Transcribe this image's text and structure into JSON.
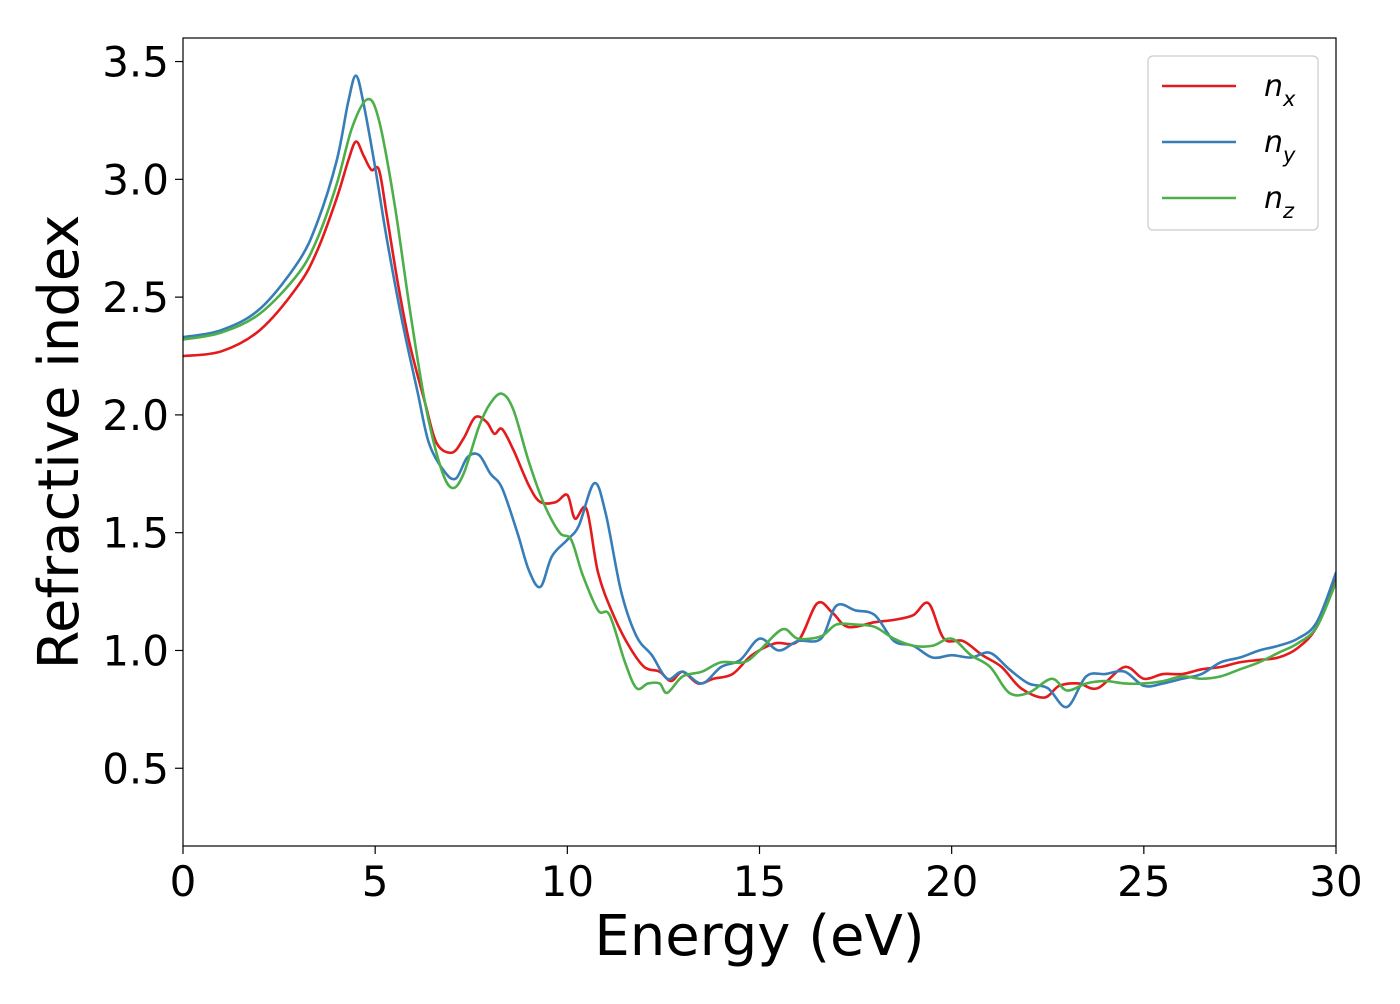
{
  "chart_data": {
    "type": "line",
    "title": "",
    "xlabel": "Energy (eV)",
    "ylabel": "Refractive index",
    "xlim": [
      0,
      30
    ],
    "ylim": [
      0.17,
      3.6
    ],
    "xticks": [
      0,
      5,
      10,
      15,
      20,
      25,
      30
    ],
    "yticks": [
      0.5,
      1.0,
      1.5,
      2.0,
      2.5,
      3.0,
      3.5
    ],
    "grid": false,
    "legend_position": "top-right",
    "series": [
      {
        "name": "n",
        "subscript": "x",
        "color": "#e41a1c",
        "points": [
          [
            0,
            2.25
          ],
          [
            1,
            2.27
          ],
          [
            2,
            2.36
          ],
          [
            3,
            2.55
          ],
          [
            3.5,
            2.7
          ],
          [
            4,
            2.92
          ],
          [
            4.3,
            3.08
          ],
          [
            4.5,
            3.16
          ],
          [
            4.7,
            3.1
          ],
          [
            4.9,
            3.04
          ],
          [
            5.1,
            3.04
          ],
          [
            5.3,
            2.85
          ],
          [
            5.6,
            2.55
          ],
          [
            5.9,
            2.3
          ],
          [
            6.3,
            2.05
          ],
          [
            6.6,
            1.88
          ],
          [
            7.0,
            1.84
          ],
          [
            7.3,
            1.9
          ],
          [
            7.6,
            1.99
          ],
          [
            7.9,
            1.97
          ],
          [
            8.1,
            1.92
          ],
          [
            8.3,
            1.94
          ],
          [
            8.6,
            1.85
          ],
          [
            9.0,
            1.7
          ],
          [
            9.3,
            1.63
          ],
          [
            9.7,
            1.63
          ],
          [
            10.0,
            1.66
          ],
          [
            10.2,
            1.56
          ],
          [
            10.5,
            1.6
          ],
          [
            10.8,
            1.33
          ],
          [
            11.2,
            1.15
          ],
          [
            11.6,
            1.02
          ],
          [
            12.0,
            0.93
          ],
          [
            12.4,
            0.91
          ],
          [
            12.7,
            0.87
          ],
          [
            13.0,
            0.91
          ],
          [
            13.4,
            0.86
          ],
          [
            13.8,
            0.88
          ],
          [
            14.3,
            0.9
          ],
          [
            14.8,
            0.98
          ],
          [
            15.4,
            1.03
          ],
          [
            16.0,
            1.04
          ],
          [
            16.5,
            1.2
          ],
          [
            16.9,
            1.16
          ],
          [
            17.3,
            1.1
          ],
          [
            18.0,
            1.12
          ],
          [
            18.5,
            1.13
          ],
          [
            19.0,
            1.15
          ],
          [
            19.4,
            1.2
          ],
          [
            19.8,
            1.05
          ],
          [
            20.3,
            1.04
          ],
          [
            20.8,
            0.98
          ],
          [
            21.3,
            0.93
          ],
          [
            21.8,
            0.84
          ],
          [
            22.4,
            0.8
          ],
          [
            22.8,
            0.85
          ],
          [
            23.3,
            0.86
          ],
          [
            23.8,
            0.84
          ],
          [
            24.5,
            0.93
          ],
          [
            25.0,
            0.88
          ],
          [
            25.5,
            0.9
          ],
          [
            26.0,
            0.9
          ],
          [
            26.5,
            0.92
          ],
          [
            27.0,
            0.93
          ],
          [
            27.5,
            0.95
          ],
          [
            28.0,
            0.96
          ],
          [
            28.5,
            0.97
          ],
          [
            29.0,
            1.01
          ],
          [
            29.5,
            1.1
          ],
          [
            30,
            1.3
          ]
        ]
      },
      {
        "name": "n",
        "subscript": "y",
        "color": "#377eb8",
        "points": [
          [
            0,
            2.33
          ],
          [
            1,
            2.36
          ],
          [
            2,
            2.45
          ],
          [
            3,
            2.65
          ],
          [
            3.5,
            2.82
          ],
          [
            4,
            3.08
          ],
          [
            4.3,
            3.33
          ],
          [
            4.5,
            3.44
          ],
          [
            4.7,
            3.32
          ],
          [
            5.0,
            3.05
          ],
          [
            5.3,
            2.75
          ],
          [
            5.7,
            2.4
          ],
          [
            6.1,
            2.1
          ],
          [
            6.4,
            1.88
          ],
          [
            6.8,
            1.76
          ],
          [
            7.1,
            1.73
          ],
          [
            7.4,
            1.82
          ],
          [
            7.7,
            1.83
          ],
          [
            8.0,
            1.75
          ],
          [
            8.3,
            1.69
          ],
          [
            8.7,
            1.5
          ],
          [
            9.0,
            1.34
          ],
          [
            9.3,
            1.27
          ],
          [
            9.6,
            1.4
          ],
          [
            10.0,
            1.47
          ],
          [
            10.3,
            1.53
          ],
          [
            10.7,
            1.71
          ],
          [
            11.0,
            1.58
          ],
          [
            11.4,
            1.25
          ],
          [
            11.8,
            1.06
          ],
          [
            12.2,
            0.98
          ],
          [
            12.6,
            0.88
          ],
          [
            13.0,
            0.91
          ],
          [
            13.5,
            0.86
          ],
          [
            14.0,
            0.93
          ],
          [
            14.5,
            0.96
          ],
          [
            15.0,
            1.05
          ],
          [
            15.5,
            1.0
          ],
          [
            16.0,
            1.04
          ],
          [
            16.6,
            1.05
          ],
          [
            17.0,
            1.19
          ],
          [
            17.5,
            1.17
          ],
          [
            18.0,
            1.15
          ],
          [
            18.5,
            1.04
          ],
          [
            19.0,
            1.02
          ],
          [
            19.5,
            0.97
          ],
          [
            20.0,
            0.98
          ],
          [
            20.5,
            0.97
          ],
          [
            21.0,
            0.99
          ],
          [
            21.5,
            0.92
          ],
          [
            22.0,
            0.86
          ],
          [
            22.5,
            0.84
          ],
          [
            23.0,
            0.76
          ],
          [
            23.5,
            0.89
          ],
          [
            24.0,
            0.9
          ],
          [
            24.5,
            0.91
          ],
          [
            25.0,
            0.85
          ],
          [
            25.5,
            0.86
          ],
          [
            26.0,
            0.88
          ],
          [
            26.5,
            0.9
          ],
          [
            27.0,
            0.95
          ],
          [
            27.5,
            0.97
          ],
          [
            28.0,
            1.0
          ],
          [
            28.5,
            1.02
          ],
          [
            29.0,
            1.05
          ],
          [
            29.5,
            1.12
          ],
          [
            30,
            1.33
          ]
        ]
      },
      {
        "name": "n",
        "subscript": "z",
        "color": "#4daf4a",
        "points": [
          [
            0,
            2.32
          ],
          [
            1,
            2.35
          ],
          [
            2,
            2.43
          ],
          [
            3,
            2.6
          ],
          [
            3.5,
            2.75
          ],
          [
            4,
            2.98
          ],
          [
            4.4,
            3.22
          ],
          [
            4.8,
            3.34
          ],
          [
            5.1,
            3.25
          ],
          [
            5.5,
            2.9
          ],
          [
            5.9,
            2.45
          ],
          [
            6.3,
            2.05
          ],
          [
            6.7,
            1.78
          ],
          [
            7.0,
            1.69
          ],
          [
            7.3,
            1.75
          ],
          [
            7.7,
            1.95
          ],
          [
            8.0,
            2.05
          ],
          [
            8.3,
            2.09
          ],
          [
            8.6,
            2.02
          ],
          [
            9.0,
            1.8
          ],
          [
            9.4,
            1.62
          ],
          [
            9.8,
            1.5
          ],
          [
            10.1,
            1.47
          ],
          [
            10.4,
            1.32
          ],
          [
            10.8,
            1.17
          ],
          [
            11.1,
            1.15
          ],
          [
            11.5,
            0.95
          ],
          [
            11.8,
            0.84
          ],
          [
            12.1,
            0.86
          ],
          [
            12.4,
            0.86
          ],
          [
            12.6,
            0.82
          ],
          [
            13.0,
            0.89
          ],
          [
            13.5,
            0.91
          ],
          [
            14.0,
            0.95
          ],
          [
            14.6,
            0.95
          ],
          [
            15.0,
            1.0
          ],
          [
            15.6,
            1.09
          ],
          [
            16.0,
            1.05
          ],
          [
            16.6,
            1.06
          ],
          [
            17.0,
            1.11
          ],
          [
            17.5,
            1.11
          ],
          [
            18.0,
            1.1
          ],
          [
            18.5,
            1.05
          ],
          [
            19.0,
            1.02
          ],
          [
            19.5,
            1.02
          ],
          [
            20.0,
            1.05
          ],
          [
            20.5,
            0.98
          ],
          [
            21.0,
            0.93
          ],
          [
            21.5,
            0.82
          ],
          [
            22.0,
            0.82
          ],
          [
            22.6,
            0.88
          ],
          [
            23.0,
            0.83
          ],
          [
            23.5,
            0.86
          ],
          [
            24.0,
            0.87
          ],
          [
            24.5,
            0.86
          ],
          [
            25.0,
            0.86
          ],
          [
            25.5,
            0.87
          ],
          [
            26.0,
            0.89
          ],
          [
            26.5,
            0.88
          ],
          [
            27.0,
            0.89
          ],
          [
            27.5,
            0.92
          ],
          [
            28.0,
            0.95
          ],
          [
            28.5,
            0.99
          ],
          [
            29.0,
            1.03
          ],
          [
            29.5,
            1.1
          ],
          [
            30,
            1.29
          ]
        ]
      }
    ]
  }
}
